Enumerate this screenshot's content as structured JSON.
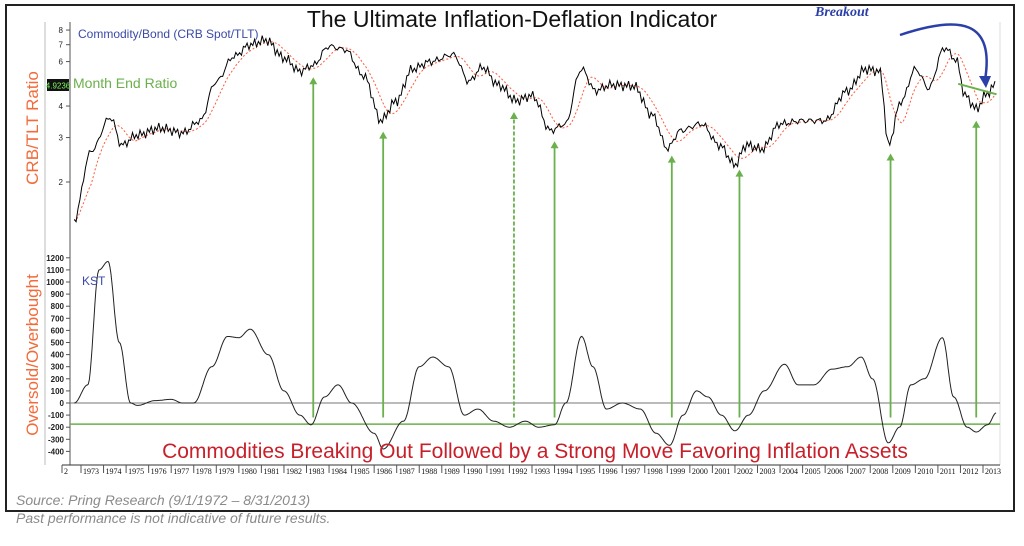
{
  "chart_data": [
    {
      "type": "line",
      "title": "The Ultimate Inflation-Deflation Indicator",
      "ylabel": "CRB/TLT Ratio",
      "legend_label": "Commodity/Bond (CRB Spot/TLT)",
      "y_scale": "log",
      "ylim": [
        1.3,
        8.6
      ],
      "y_ticks": [
        "2",
        "3",
        "4",
        "6",
        "7",
        "8"
      ],
      "last_value_label": "4.9236",
      "last_value_caption": "Month End Ratio",
      "annotation": "Breakout",
      "series": [
        {
          "x": [
            1972.7,
            1973.5,
            1974.3,
            1974.8,
            1975.5,
            1976.5,
            1977.5,
            1978.3,
            1979,
            1979.8,
            1980.5,
            1981.2,
            1982,
            1982.7,
            1983.3,
            1984,
            1984.7,
            1985.5,
            1986.3,
            1987,
            1987.7,
            1988.5,
            1989.5,
            1990.2,
            1990.8,
            1991.5,
            1992.3,
            1993,
            1993.8,
            1994.5,
            1995.2,
            1995.8,
            1996.5,
            1997.5,
            1998.3,
            1999,
            1999.6,
            2000.5,
            2001.3,
            2002,
            2002.5,
            2003.2,
            2004,
            2005,
            2006,
            2007,
            2007.8,
            2008.4,
            2008.8,
            2009.4,
            2010,
            2010.6,
            2011.3,
            2011.8,
            2012.2,
            2012.7,
            2013.2,
            2013.6
          ],
          "y": [
            1.41,
            2.68,
            3.6,
            2.8,
            3.07,
            3.27,
            3.13,
            3.5,
            5.0,
            6.3,
            7.0,
            7.3,
            6.2,
            5.5,
            5.8,
            6.9,
            6.7,
            5.3,
            3.5,
            4.2,
            5.6,
            6.0,
            6.4,
            5.0,
            5.7,
            4.85,
            4.2,
            4.4,
            3.2,
            3.4,
            5.6,
            4.6,
            4.85,
            4.8,
            3.7,
            2.72,
            3.2,
            3.4,
            2.8,
            2.34,
            2.8,
            2.7,
            3.4,
            3.5,
            3.5,
            4.6,
            5.6,
            5.5,
            2.8,
            4.2,
            5.6,
            4.7,
            6.8,
            6.1,
            4.4,
            3.9,
            4.5,
            4.92
          ]
        }
      ],
      "moving_average": "dotted red",
      "trendline": {
        "x": [
          2011.9,
          2013.6
        ],
        "y": [
          4.9,
          4.45
        ]
      },
      "signal_years": [
        1983.3,
        1986.4,
        1992.2,
        1994.0,
        1999.2,
        2002.2,
        2008.9,
        2012.7
      ],
      "dashed_signal_year": 1992.2
    },
    {
      "type": "line",
      "ylabel": "Oversold/Overbought",
      "legend_label": "KST",
      "ylim": [
        -450,
        1300
      ],
      "y_ticks": [
        1200,
        1100,
        1000,
        900,
        800,
        700,
        600,
        500,
        400,
        300,
        200,
        100,
        0,
        -100,
        -200,
        -300,
        -400
      ],
      "reference_lines": [
        0,
        -175
      ],
      "series": [
        {
          "x": [
            1972.7,
            1973.3,
            1973.8,
            1974.2,
            1974.7,
            1975.2,
            1975.5,
            1976.3,
            1977,
            1977.5,
            1978,
            1978.8,
            1979.5,
            1980,
            1980.5,
            1981.3,
            1982,
            1982.7,
            1983.2,
            1983.8,
            1984.4,
            1985,
            1986,
            1986.4,
            1987.3,
            1988,
            1988.6,
            1989.3,
            1990,
            1990.6,
            1991.3,
            1992,
            1992.7,
            1993.3,
            1994,
            1994.5,
            1995.2,
            1995.7,
            1996.3,
            1997,
            1997.8,
            1998.5,
            1999.1,
            1999.7,
            2000.3,
            2000.8,
            2001.4,
            2002,
            2002.6,
            2003.3,
            2004.2,
            2004.8,
            2005.5,
            2006.3,
            2007,
            2007.6,
            2008.1,
            2008.8,
            2009.3,
            2009.8,
            2010.4,
            2011.2,
            2011.7,
            2012.3,
            2012.7,
            2013.2,
            2013.6
          ],
          "y": [
            0,
            150,
            1100,
            1170,
            500,
            0,
            -20,
            20,
            30,
            0,
            0,
            300,
            550,
            540,
            610,
            400,
            100,
            -100,
            -180,
            50,
            150,
            0,
            -250,
            -380,
            -150,
            300,
            380,
            300,
            -100,
            -50,
            -150,
            -200,
            -150,
            -200,
            -180,
            0,
            550,
            300,
            -50,
            0,
            -50,
            -250,
            -350,
            -100,
            100,
            50,
            -100,
            -230,
            -100,
            100,
            320,
            150,
            150,
            280,
            300,
            380,
            200,
            -330,
            -200,
            150,
            200,
            540,
            50,
            -200,
            -240,
            -180,
            -80
          ]
        }
      ],
      "caption": "Commodities Breaking Out Followed by a Strong Move Favoring Inflation Assets"
    }
  ],
  "x_axis": {
    "tick_labels": [
      "2",
      "1973",
      "1974",
      "1975",
      "1976",
      "1977",
      "1978",
      "1979",
      "1980",
      "1981",
      "1982",
      "1983",
      "1984",
      "1985",
      "1986",
      "1987",
      "1988",
      "1989",
      "1990",
      "1991",
      "1992",
      "1993",
      "1994",
      "1995",
      "1996",
      "1997",
      "1998",
      "1999",
      "2000",
      "2001",
      "2002",
      "2003",
      "2004",
      "2005",
      "2006",
      "2007",
      "2008",
      "2009",
      "2010",
      "2011",
      "2012",
      "2013"
    ]
  },
  "colors": {
    "ratio": "#000000",
    "moving_average": "#ff5a3c",
    "signal": "#6ab04c",
    "axis_title": "#f26b3a",
    "legend": "#3a4aa8",
    "caption": "#c8202a",
    "breakout": "#2b3fa8"
  },
  "footer": {
    "source": "Source: Pring Research (9/1/1972 – 8/31/2013)",
    "disclaimer": "Past performance is not indicative of future results."
  }
}
